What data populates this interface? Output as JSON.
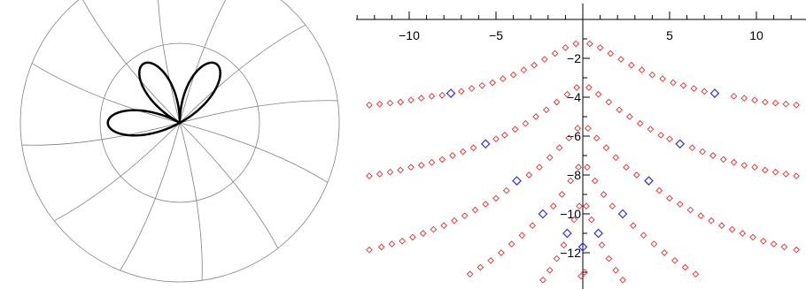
{
  "chart_data": [
    {
      "type": "line",
      "subtype": "polar",
      "title": "",
      "curve": {
        "form": "r = sin(3θ)",
        "lobes": 3,
        "color": "#000000"
      },
      "grid": {
        "circles": [
          0.5,
          1.0
        ],
        "radial_lines": 12,
        "color": "#808080"
      },
      "axes": "none"
    },
    {
      "type": "scatter",
      "title": "",
      "xlabel": "",
      "ylabel": "",
      "xlim": [
        -13,
        13
      ],
      "ylim": [
        -13.6,
        1.3
      ],
      "grid": false,
      "x_ticks": [
        -10,
        -5,
        5,
        10
      ],
      "x_tick_labels": [
        "−10",
        "−5",
        "5",
        "10"
      ],
      "y_ticks": [
        -2,
        -4,
        -6,
        -8,
        -10,
        -12
      ],
      "y_tick_labels": [
        "−2",
        "−4",
        "−6",
        "−8",
        "−10",
        "−12"
      ],
      "marker": "diamond",
      "series": [
        {
          "color": "#e03030",
          "points": [
            [
              0.4,
              -1.25
            ],
            [
              1.0,
              -1.45
            ],
            [
              1.6,
              -1.75
            ],
            [
              2.2,
              -2.05
            ],
            [
              2.8,
              -2.35
            ],
            [
              3.4,
              -2.6
            ],
            [
              4.0,
              -2.85
            ],
            [
              4.6,
              -3.05
            ],
            [
              5.2,
              -3.25
            ],
            [
              5.8,
              -3.4
            ],
            [
              6.4,
              -3.55
            ],
            [
              7.0,
              -3.7
            ],
            [
              8.7,
              -3.95
            ],
            [
              9.3,
              -4.05
            ],
            [
              9.9,
              -4.15
            ],
            [
              10.5,
              -4.25
            ],
            [
              11.1,
              -4.3
            ],
            [
              11.7,
              -4.35
            ],
            [
              12.3,
              -4.4
            ],
            [
              -0.4,
              -1.25
            ],
            [
              -1.0,
              -1.45
            ],
            [
              -1.6,
              -1.75
            ],
            [
              -2.2,
              -2.05
            ],
            [
              -2.8,
              -2.35
            ],
            [
              -3.4,
              -2.6
            ],
            [
              -4.0,
              -2.85
            ],
            [
              -4.6,
              -3.05
            ],
            [
              -5.2,
              -3.25
            ],
            [
              -5.8,
              -3.4
            ],
            [
              -6.4,
              -3.55
            ],
            [
              -7.0,
              -3.7
            ],
            [
              -8.1,
              -3.9
            ],
            [
              -8.7,
              -3.95
            ],
            [
              -9.3,
              -4.05
            ],
            [
              -9.9,
              -4.15
            ],
            [
              -10.5,
              -4.25
            ],
            [
              -11.1,
              -4.3
            ],
            [
              -11.7,
              -4.35
            ],
            [
              -12.3,
              -4.4
            ],
            [
              0.35,
              -3.5
            ],
            [
              0.9,
              -3.85
            ],
            [
              1.5,
              -4.25
            ],
            [
              2.1,
              -4.65
            ],
            [
              2.7,
              -5.0
            ],
            [
              3.3,
              -5.35
            ],
            [
              3.9,
              -5.65
            ],
            [
              4.5,
              -5.95
            ],
            [
              5.0,
              -6.15
            ],
            [
              6.3,
              -6.6
            ],
            [
              6.9,
              -6.8
            ],
            [
              7.5,
              -7.0
            ],
            [
              8.1,
              -7.2
            ],
            [
              8.7,
              -7.35
            ],
            [
              9.3,
              -7.5
            ],
            [
              9.9,
              -7.6
            ],
            [
              10.5,
              -7.75
            ],
            [
              11.1,
              -7.85
            ],
            [
              11.7,
              -7.95
            ],
            [
              12.3,
              -8.05
            ],
            [
              -0.35,
              -3.5
            ],
            [
              -0.9,
              -3.85
            ],
            [
              -1.5,
              -4.25
            ],
            [
              -2.1,
              -4.65
            ],
            [
              -2.7,
              -5.0
            ],
            [
              -3.3,
              -5.35
            ],
            [
              -3.9,
              -5.65
            ],
            [
              -4.5,
              -5.95
            ],
            [
              -5.0,
              -6.15
            ],
            [
              -6.3,
              -6.6
            ],
            [
              -6.9,
              -6.8
            ],
            [
              -7.5,
              -7.0
            ],
            [
              -8.1,
              -7.2
            ],
            [
              -8.7,
              -7.35
            ],
            [
              -9.3,
              -7.5
            ],
            [
              -9.9,
              -7.6
            ],
            [
              -10.5,
              -7.75
            ],
            [
              -11.1,
              -7.85
            ],
            [
              -11.7,
              -7.95
            ],
            [
              -12.3,
              -8.05
            ],
            [
              0.3,
              -5.6
            ],
            [
              0.8,
              -6.1
            ],
            [
              1.35,
              -6.6
            ],
            [
              1.9,
              -7.1
            ],
            [
              2.5,
              -7.6
            ],
            [
              3.1,
              -8.0
            ],
            [
              4.4,
              -8.8
            ],
            [
              5.0,
              -9.2
            ],
            [
              5.6,
              -9.5
            ],
            [
              6.2,
              -9.8
            ],
            [
              6.8,
              -10.1
            ],
            [
              7.4,
              -10.35
            ],
            [
              8.0,
              -10.6
            ],
            [
              8.6,
              -10.8
            ],
            [
              9.2,
              -11.0
            ],
            [
              9.8,
              -11.2
            ],
            [
              10.4,
              -11.4
            ],
            [
              11.0,
              -11.55
            ],
            [
              11.6,
              -11.7
            ],
            [
              12.3,
              -11.85
            ],
            [
              -0.3,
              -5.6
            ],
            [
              -0.8,
              -6.1
            ],
            [
              -1.35,
              -6.6
            ],
            [
              -1.9,
              -7.1
            ],
            [
              -2.5,
              -7.6
            ],
            [
              -3.1,
              -8.0
            ],
            [
              -4.4,
              -8.8
            ],
            [
              -5.0,
              -9.2
            ],
            [
              -5.6,
              -9.5
            ],
            [
              -6.2,
              -9.8
            ],
            [
              -6.8,
              -10.1
            ],
            [
              -7.4,
              -10.35
            ],
            [
              -8.0,
              -10.6
            ],
            [
              -8.6,
              -10.8
            ],
            [
              -9.2,
              -11.0
            ],
            [
              -9.8,
              -11.2
            ],
            [
              -10.4,
              -11.4
            ],
            [
              -11.0,
              -11.55
            ],
            [
              -11.6,
              -11.7
            ],
            [
              -12.3,
              -11.85
            ],
            [
              0.25,
              -7.6
            ],
            [
              0.7,
              -8.3
            ],
            [
              1.2,
              -9.0
            ],
            [
              1.7,
              -9.6
            ],
            [
              2.9,
              -10.6
            ],
            [
              3.5,
              -11.1
            ],
            [
              4.1,
              -11.55
            ],
            [
              4.7,
              -12.0
            ],
            [
              5.3,
              -12.4
            ],
            [
              5.9,
              -12.75
            ],
            [
              6.5,
              -13.1
            ],
            [
              -0.25,
              -7.6
            ],
            [
              -0.7,
              -8.3
            ],
            [
              -1.2,
              -9.0
            ],
            [
              -1.7,
              -9.6
            ],
            [
              -2.9,
              -10.6
            ],
            [
              -3.5,
              -11.1
            ],
            [
              -4.1,
              -11.55
            ],
            [
              -4.7,
              -12.0
            ],
            [
              -5.3,
              -12.4
            ],
            [
              -5.9,
              -12.75
            ],
            [
              -6.5,
              -13.1
            ],
            [
              0.2,
              -9.6
            ],
            [
              0.5,
              -10.3
            ],
            [
              1.1,
              -11.6
            ],
            [
              1.5,
              -12.3
            ],
            [
              1.9,
              -12.9
            ],
            [
              2.3,
              -13.4
            ],
            [
              -0.2,
              -9.6
            ],
            [
              -0.5,
              -10.3
            ],
            [
              -1.1,
              -11.6
            ],
            [
              -1.5,
              -12.3
            ],
            [
              -1.9,
              -12.9
            ],
            [
              -2.3,
              -13.4
            ],
            [
              0.1,
              -13.0
            ],
            [
              -0.1,
              -13.2
            ]
          ]
        },
        {
          "color": "#3030e0",
          "points": [
            [
              7.6,
              -3.8
            ],
            [
              -7.6,
              -3.8
            ],
            [
              5.6,
              -6.4
            ],
            [
              -5.6,
              -6.4
            ],
            [
              3.8,
              -8.3
            ],
            [
              -3.8,
              -8.3
            ],
            [
              2.3,
              -10.0
            ],
            [
              -2.3,
              -10.0
            ],
            [
              0.9,
              -11.0
            ],
            [
              -0.9,
              -11.0
            ],
            [
              0.0,
              -11.7
            ]
          ]
        }
      ]
    }
  ]
}
